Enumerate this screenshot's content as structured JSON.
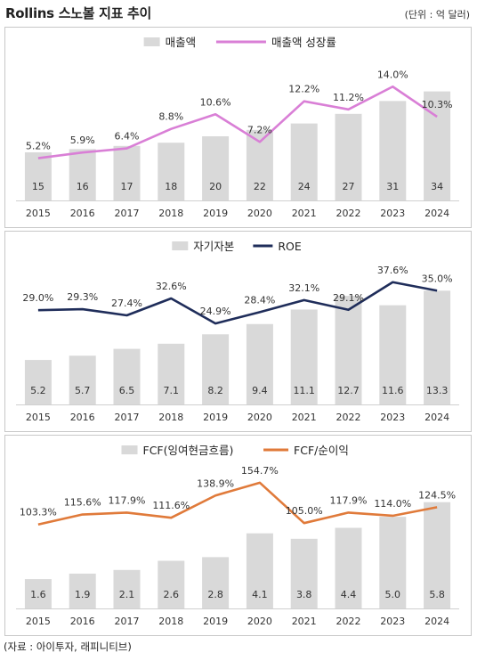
{
  "header": {
    "title": "Rollins 스노볼 지표 추이",
    "unit": "(단위 : 억 달러)"
  },
  "footer": {
    "source": "(자료 : 아이투자, 래피니티브)"
  },
  "colors": {
    "bar": "#d9d9d9",
    "growth_line": "#d97fd6",
    "roe_line": "#1f2d5a",
    "fcf_line": "#e07a3a"
  },
  "chart_data": [
    {
      "type": "bar",
      "categories": [
        "2015",
        "2016",
        "2017",
        "2018",
        "2019",
        "2020",
        "2021",
        "2022",
        "2023",
        "2024"
      ],
      "series": [
        {
          "name": "매출액",
          "type": "bar",
          "values": [
            15,
            16,
            17,
            18,
            20,
            22,
            24,
            27,
            31,
            34
          ]
        },
        {
          "name": "매출액 성장률",
          "type": "line",
          "values": [
            5.2,
            5.9,
            6.4,
            8.8,
            10.6,
            7.2,
            12.2,
            11.2,
            14.0,
            10.3
          ],
          "labels": [
            "5.2%",
            "5.9%",
            "6.4%",
            "8.8%",
            "10.6%",
            "7.2%",
            "12.2%",
            "11.2%",
            "14.0%",
            "10.3%"
          ]
        }
      ],
      "bar_labels": [
        "15",
        "16",
        "17",
        "18",
        "20",
        "22",
        "24",
        "27",
        "31",
        "34"
      ],
      "bar_ylim": [
        0,
        40
      ],
      "line_ylim": [
        0,
        16
      ],
      "legend_position": "top-center",
      "grid": false
    },
    {
      "type": "bar",
      "categories": [
        "2015",
        "2016",
        "2017",
        "2018",
        "2019",
        "2020",
        "2021",
        "2022",
        "2023",
        "2024"
      ],
      "series": [
        {
          "name": "자기자본",
          "type": "bar",
          "values": [
            5.2,
            5.7,
            6.5,
            7.1,
            8.2,
            9.4,
            11.1,
            12.7,
            11.6,
            13.3
          ]
        },
        {
          "name": "ROE",
          "type": "line",
          "values": [
            29.0,
            29.3,
            27.4,
            32.6,
            24.9,
            28.4,
            32.1,
            29.1,
            37.6,
            35.0
          ],
          "labels": [
            "29.0%",
            "29.3%",
            "27.4%",
            "32.6%",
            "24.9%",
            "28.4%",
            "32.1%",
            "29.1%",
            "37.6%",
            "35.0%"
          ]
        }
      ],
      "bar_labels": [
        "5.2",
        "5.7",
        "6.5",
        "7.1",
        "8.2",
        "9.4",
        "11.1",
        "12.7",
        "11.6",
        "13.3"
      ],
      "bar_ylim": [
        0,
        15
      ],
      "line_ylim": [
        0,
        40
      ],
      "legend_position": "top-center",
      "grid": false
    },
    {
      "type": "bar",
      "categories": [
        "2015",
        "2016",
        "2017",
        "2018",
        "2019",
        "2020",
        "2021",
        "2022",
        "2023",
        "2024"
      ],
      "series": [
        {
          "name": "FCF(잉여현금흐름)",
          "type": "bar",
          "values": [
            1.6,
            1.9,
            2.1,
            2.6,
            2.8,
            4.1,
            3.8,
            4.4,
            5.0,
            5.8
          ]
        },
        {
          "name": "FCF/순이익",
          "type": "line",
          "values": [
            103.3,
            115.6,
            117.9,
            111.6,
            138.9,
            154.7,
            105.0,
            117.9,
            114.0,
            124.5
          ],
          "labels": [
            "103.3%",
            "115.6%",
            "117.9%",
            "111.6%",
            "138.9%",
            "154.7%",
            "105.0%",
            "117.9%",
            "114.0%",
            "124.5%"
          ]
        }
      ],
      "bar_labels": [
        "1.6",
        "1.9",
        "2.1",
        "2.6",
        "2.8",
        "4.1",
        "3.8",
        "4.4",
        "5.0",
        "5.8"
      ],
      "bar_ylim": [
        0,
        7
      ],
      "line_ylim": [
        0,
        160
      ],
      "legend_position": "top-center",
      "grid": false
    }
  ]
}
